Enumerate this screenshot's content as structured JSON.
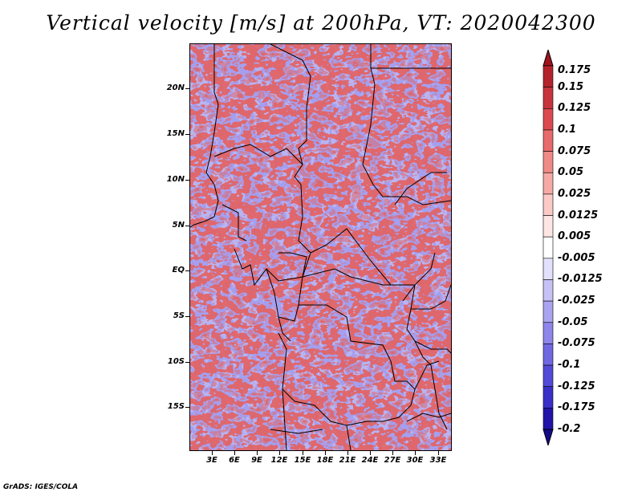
{
  "title": "Vertical velocity [m/s] at 200hPa, VT: 2020042300",
  "footer": "GrADS: IGES/COLA",
  "map": {
    "lat_labels": [
      "20N",
      "15N",
      "10N",
      "5N",
      "EQ",
      "5S",
      "10S",
      "15S"
    ],
    "lon_labels": [
      "3E",
      "6E",
      "9E",
      "12E",
      "15E",
      "18E",
      "21E",
      "24E",
      "27E",
      "30E",
      "33E"
    ]
  },
  "colorbar": {
    "labels": [
      "0.175",
      "0.15",
      "0.125",
      "0.1",
      "0.075",
      "0.05",
      "0.025",
      "0.0125",
      "0.005",
      "-0.005",
      "-0.0125",
      "-0.025",
      "-0.05",
      "-0.075",
      "-0.1",
      "-0.125",
      "-0.175",
      "-0.2"
    ],
    "colors": [
      "#a0141e",
      "#b4232c",
      "#c8343c",
      "#dc4a4f",
      "#e86a6a",
      "#f08a86",
      "#f6aaa6",
      "#fbcac6",
      "#fde6e4",
      "#ffffff",
      "#e2e0fb",
      "#c6c2f6",
      "#aaa4f0",
      "#8e86ea",
      "#7068e2",
      "#544ad8",
      "#3a2fc8",
      "#2214a8",
      "#140a8a"
    ]
  }
}
